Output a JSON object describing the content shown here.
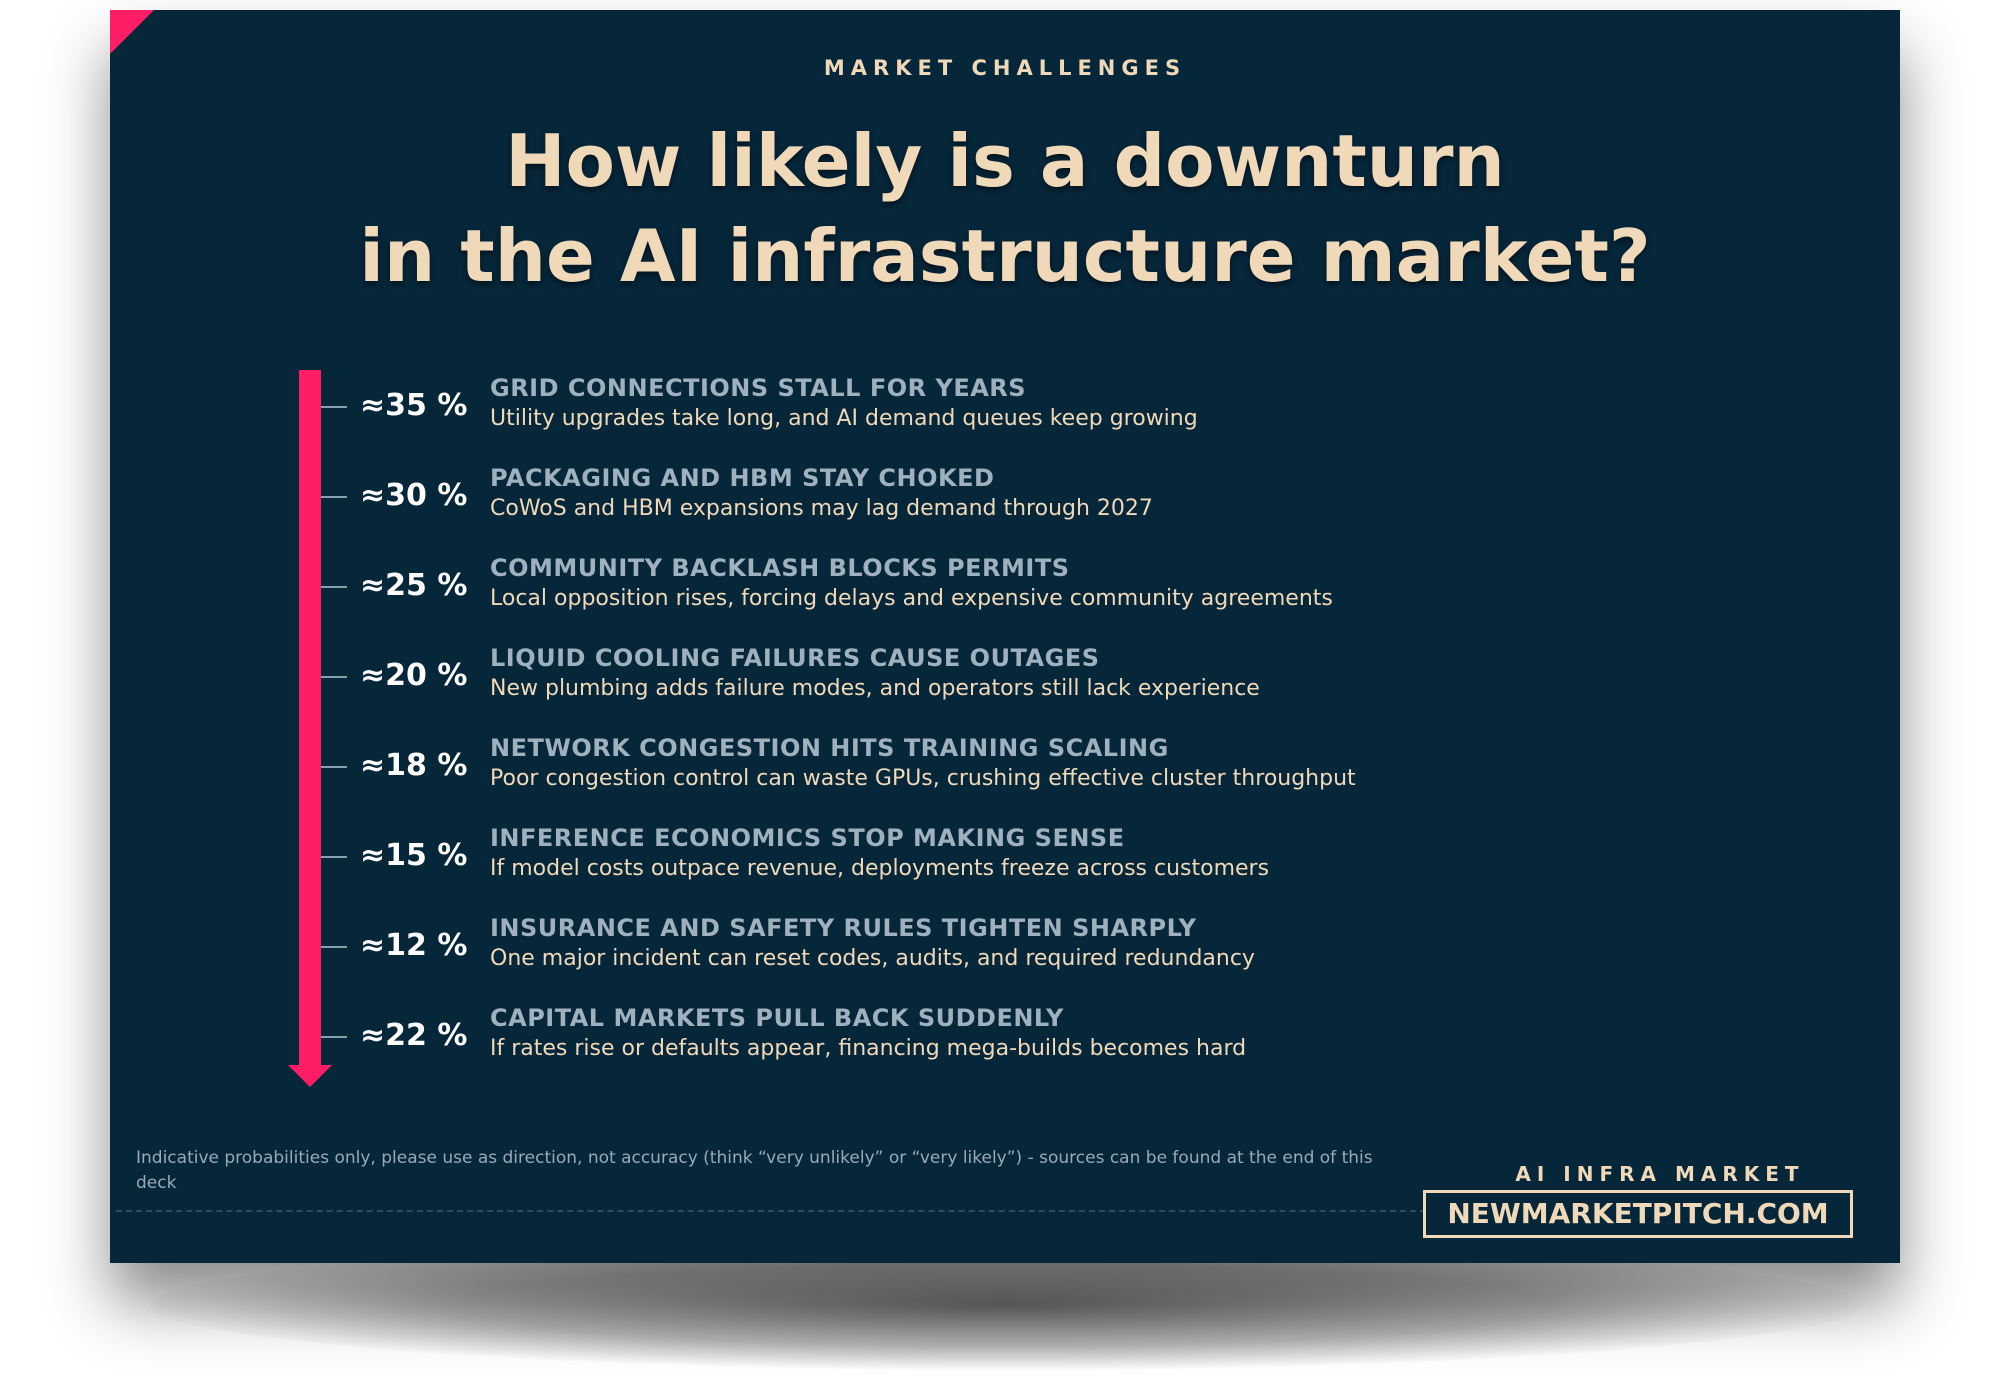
{
  "header": {
    "eyebrow": "MARKET CHALLENGES",
    "title_line1": "How likely is a downturn",
    "title_line2": "in the AI infrastructure market?"
  },
  "risks": [
    {
      "probability": "≈35 %",
      "title": "GRID CONNECTIONS STALL FOR YEARS",
      "description": "Utility upgrades take long, and AI demand queues keep growing"
    },
    {
      "probability": "≈30 %",
      "title": "PACKAGING AND HBM STAY CHOKED",
      "description": "CoWoS and HBM expansions may lag demand through 2027"
    },
    {
      "probability": "≈25 %",
      "title": "COMMUNITY BACKLASH BLOCKS PERMITS",
      "description": "Local opposition rises, forcing delays and expensive community agreements"
    },
    {
      "probability": "≈20 %",
      "title": "LIQUID COOLING FAILURES CAUSE OUTAGES",
      "description": "New plumbing adds failure modes, and operators still lack experience"
    },
    {
      "probability": "≈18 %",
      "title": "NETWORK CONGESTION HITS TRAINING SCALING",
      "description": "Poor congestion control can waste GPUs, crushing effective cluster throughput"
    },
    {
      "probability": "≈15 %",
      "title": "INFERENCE ECONOMICS STOP MAKING SENSE",
      "description": "If model costs outpace revenue, deployments freeze across customers"
    },
    {
      "probability": "≈12 %",
      "title": "INSURANCE AND SAFETY RULES TIGHTEN SHARPLY",
      "description": "One major incident can reset codes, audits, and required redundancy"
    },
    {
      "probability": "≈22 %",
      "title": "CAPITAL MARKETS PULL BACK SUDDENLY",
      "description": "If rates rise or defaults appear, financing mega-builds becomes hard"
    }
  ],
  "footer": {
    "note": "Indicative probabilities only, please use as direction, not accuracy (think “very unlikely” or “very likely”) - sources can be found at the end of this deck",
    "brand_label": "AI INFRA MARKET",
    "brand_url": "NEWMARKETPITCH.COM"
  },
  "colors": {
    "background": "#06263a",
    "accent": "#ff1e66",
    "headline": "#efd9b8",
    "risk_title": "#9fb1bd"
  }
}
